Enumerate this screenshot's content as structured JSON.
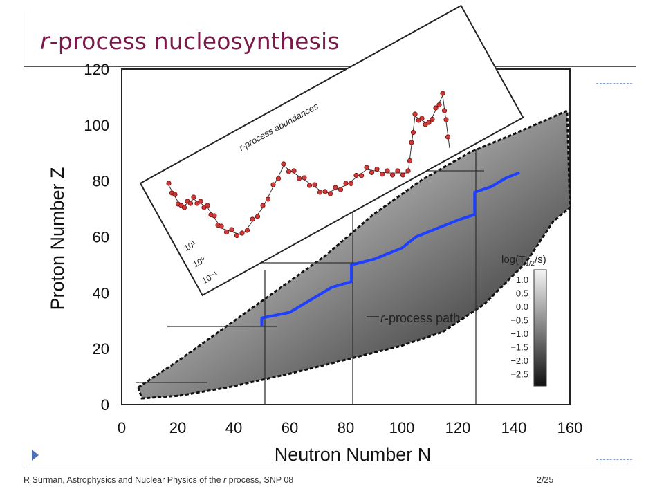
{
  "slide": {
    "title_italic": "r",
    "title_rest": "-process nucleosynthesis",
    "footer_left_prefix": "R Surman, Astrophysics and Nuclear Physics of the ",
    "footer_left_italic": "r",
    "footer_left_suffix": " process, SNP 08",
    "page_number": "2/25"
  },
  "figure": {
    "inset_label": "r-process abundances",
    "path_label": "r-process path",
    "inset_ticks": [
      "10¹",
      "10⁰",
      "10⁻¹"
    ],
    "legend_title": "log(T",
    "legend_title_sub": "1/2",
    "legend_title_tail": "/s)",
    "legend_values": [
      "1.0",
      "0.5",
      "0.0",
      "−0.5",
      "−1.0",
      "−1.5",
      "−2.0",
      "−2.5"
    ]
  },
  "chart_data": {
    "type": "scatter",
    "title": "",
    "xlabel": "Neutron Number N",
    "ylabel": "Proton Number Z",
    "xlim": [
      0,
      160
    ],
    "ylim": [
      0,
      120
    ],
    "x_ticks": [
      "0",
      "20",
      "40",
      "60",
      "80",
      "100",
      "120",
      "140",
      "160"
    ],
    "y_ticks": [
      "0",
      "20",
      "40",
      "60",
      "80",
      "100",
      "120"
    ],
    "path_color": "#1f3fff",
    "series": [
      {
        "name": "r-process path",
        "x": [
          50,
          50,
          55,
          60,
          65,
          70,
          75,
          82,
          82,
          90,
          95,
          100,
          105,
          110,
          115,
          120,
          126,
          126,
          132,
          137,
          142
        ],
        "y": [
          28,
          31,
          32,
          33,
          36,
          39,
          42,
          44,
          50,
          52,
          54,
          56,
          60,
          62,
          64,
          66,
          68,
          76,
          78,
          81,
          83
        ]
      }
    ]
  }
}
